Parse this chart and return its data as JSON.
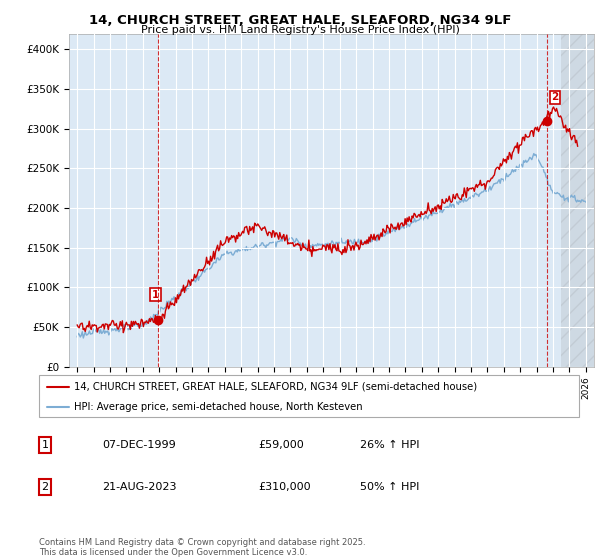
{
  "title_line1": "14, CHURCH STREET, GREAT HALE, SLEAFORD, NG34 9LF",
  "title_line2": "Price paid vs. HM Land Registry's House Price Index (HPI)",
  "legend_line1": "14, CHURCH STREET, GREAT HALE, SLEAFORD, NG34 9LF (semi-detached house)",
  "legend_line2": "HPI: Average price, semi-detached house, North Kesteven",
  "annotation1_num": "1",
  "annotation1_date": "07-DEC-1999",
  "annotation1_price": "£59,000",
  "annotation1_hpi": "26% ↑ HPI",
  "annotation2_num": "2",
  "annotation2_date": "21-AUG-2023",
  "annotation2_price": "£310,000",
  "annotation2_hpi": "50% ↑ HPI",
  "footer": "Contains HM Land Registry data © Crown copyright and database right 2025.\nThis data is licensed under the Open Government Licence v3.0.",
  "red_color": "#cc0000",
  "blue_color": "#7dadd4",
  "chart_bg_color": "#dce9f5",
  "background_color": "#ffffff",
  "grid_color": "#ffffff",
  "ylim": [
    0,
    420000
  ],
  "yticks": [
    0,
    50000,
    100000,
    150000,
    200000,
    250000,
    300000,
    350000,
    400000
  ],
  "ytick_labels": [
    "£0",
    "£50K",
    "£100K",
    "£150K",
    "£200K",
    "£250K",
    "£300K",
    "£350K",
    "£400K"
  ],
  "purchase1_year": 1999.93,
  "purchase1_price": 59000,
  "purchase2_year": 2023.63,
  "purchase2_price": 310000,
  "xmin": 1994.5,
  "xmax": 2026.5
}
